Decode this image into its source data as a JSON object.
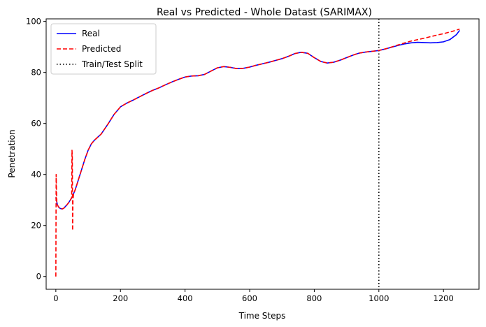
{
  "chart_data": {
    "type": "line",
    "title": "Real vs Predicted - Whole Datast (SARIMAX)",
    "xlabel": "Time Steps",
    "ylabel": "Penetration",
    "xlim": [
      -30,
      1310
    ],
    "ylim": [
      -5,
      101
    ],
    "xticks": [
      0,
      200,
      400,
      600,
      800,
      1000,
      1200
    ],
    "yticks": [
      0,
      20,
      40,
      60,
      80,
      100
    ],
    "grid": false,
    "legend": {
      "position": "top-left"
    },
    "series": [
      {
        "name": "Real",
        "color": "#0000ff",
        "style": "solid",
        "x": [
          0,
          5,
          10,
          15,
          20,
          25,
          30,
          35,
          40,
          45,
          50,
          55,
          60,
          70,
          80,
          90,
          100,
          110,
          120,
          140,
          160,
          180,
          200,
          220,
          240,
          260,
          280,
          300,
          320,
          340,
          360,
          380,
          400,
          420,
          440,
          460,
          480,
          500,
          520,
          540,
          560,
          580,
          600,
          620,
          640,
          660,
          680,
          700,
          720,
          740,
          760,
          780,
          800,
          820,
          840,
          860,
          880,
          900,
          920,
          940,
          960,
          980,
          1000,
          1020,
          1040,
          1060,
          1080,
          1100,
          1120,
          1140,
          1160,
          1180,
          1200,
          1220,
          1240,
          1250
        ],
        "y": [
          31,
          28,
          27,
          26.6,
          26.5,
          26.8,
          27.5,
          28.2,
          29,
          30,
          31,
          32.5,
          34,
          38,
          42,
          46,
          49.5,
          52,
          53.5,
          55.8,
          59.5,
          63.5,
          66.5,
          68,
          69.2,
          70.5,
          71.8,
          73,
          74,
          75.2,
          76.3,
          77.3,
          78.2,
          78.6,
          78.7,
          79.2,
          80.5,
          81.8,
          82.3,
          82,
          81.5,
          81.6,
          82.1,
          82.8,
          83.4,
          84,
          84.7,
          85.4,
          86.3,
          87.4,
          87.9,
          87.5,
          85.8,
          84.3,
          83.7,
          84,
          84.8,
          85.8,
          86.8,
          87.6,
          88,
          88.3,
          88.6,
          89.2,
          89.9,
          90.6,
          91.2,
          91.6,
          91.8,
          91.7,
          91.6,
          91.7,
          92,
          92.9,
          94.8,
          96.5
        ]
      },
      {
        "name": "Predicted",
        "color": "#ff0000",
        "style": "dashed",
        "x": [
          0,
          1,
          2,
          3,
          4,
          5,
          10,
          15,
          20,
          25,
          30,
          35,
          40,
          45,
          49,
          50,
          51,
          52,
          53,
          55,
          60,
          70,
          80,
          90,
          100,
          110,
          120,
          140,
          160,
          180,
          200,
          220,
          240,
          260,
          280,
          300,
          320,
          340,
          360,
          380,
          400,
          420,
          440,
          460,
          480,
          500,
          520,
          540,
          560,
          580,
          600,
          620,
          640,
          660,
          680,
          700,
          720,
          740,
          760,
          780,
          800,
          820,
          840,
          860,
          880,
          900,
          920,
          940,
          960,
          980,
          1000,
          1025,
          1050,
          1075,
          1100,
          1125,
          1150,
          1175,
          1200,
          1225,
          1250
        ],
        "y": [
          0,
          40,
          33,
          29,
          28.5,
          28,
          27,
          26.6,
          26.5,
          26.8,
          27.5,
          28.2,
          29,
          30,
          31,
          49.5,
          47,
          18,
          30,
          32.5,
          34,
          38,
          42,
          46,
          49.5,
          52,
          53.5,
          55.8,
          59.5,
          63.5,
          66.5,
          68,
          69.2,
          70.5,
          71.8,
          73,
          74,
          75.2,
          76.3,
          77.3,
          78.2,
          78.6,
          78.7,
          79.2,
          80.5,
          81.8,
          82.3,
          82,
          81.5,
          81.6,
          82.1,
          82.8,
          83.4,
          84,
          84.7,
          85.4,
          86.3,
          87.4,
          87.9,
          87.5,
          85.8,
          84.3,
          83.7,
          84,
          84.8,
          85.8,
          86.8,
          87.6,
          88,
          88.3,
          88.6,
          89.4,
          90.4,
          91.4,
          92.3,
          93,
          93.7,
          94.5,
          95.2,
          96,
          97
        ]
      }
    ],
    "vlines": [
      {
        "name": "Train/Test Split",
        "x": 1000,
        "color": "#000000",
        "style": "dotted"
      }
    ]
  }
}
